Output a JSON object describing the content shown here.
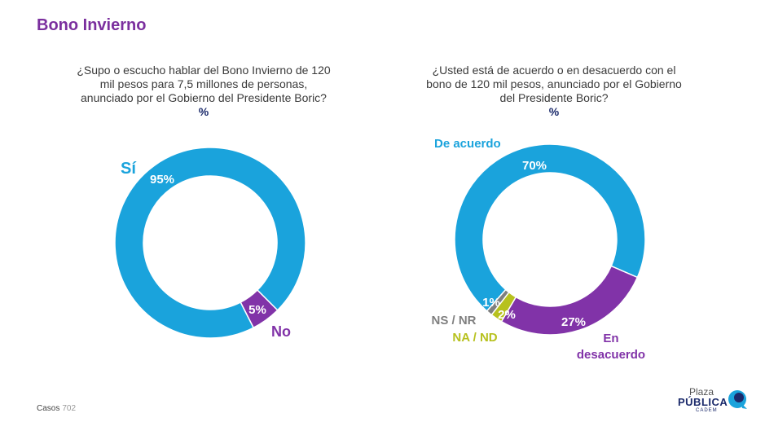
{
  "page": {
    "title": "Bono Invierno"
  },
  "footer": {
    "label": "Casos",
    "count": "702"
  },
  "logo": {
    "line1": "Plaza",
    "line2": "PÚBLICA",
    "line3": "CADEM"
  },
  "colors": {
    "blue": "#1aa3dc",
    "purple": "#8133a8",
    "gray": "#7f7f7f",
    "lime": "#b7c11e",
    "title": "#7b2f9e"
  },
  "chart_data": [
    {
      "type": "pie",
      "question": [
        "¿Supo o escucho hablar del Bono Invierno de 120",
        "mil pesos para 7,5 millones de personas,",
        "anunciado por el Gobierno del Presidente Boric?"
      ],
      "unit": "%",
      "slices": [
        {
          "name": "No",
          "value": 5,
          "label": "5%",
          "color": "#8133a8"
        },
        {
          "name": "Sí",
          "value": 95,
          "label": "95%",
          "color": "#1aa3dc"
        }
      ]
    },
    {
      "type": "pie",
      "question": [
        "¿Usted está de acuerdo o en desacuerdo con el",
        "bono de 120 mil pesos, anunciado por el Gobierno",
        "del Presidente Boric?"
      ],
      "unit": "%",
      "slices": [
        {
          "name": "De acuerdo",
          "value": 70,
          "label": "70%",
          "color": "#1aa3dc"
        },
        {
          "name": "En desacuerdo",
          "value": 27,
          "label": "27%",
          "color": "#8133a8"
        },
        {
          "name": "NA / ND",
          "value": 2,
          "label": "2%",
          "color": "#b7c11e"
        },
        {
          "name": "NS / NR",
          "value": 1,
          "label": "1%",
          "color": "#7f7f7f"
        }
      ]
    }
  ]
}
